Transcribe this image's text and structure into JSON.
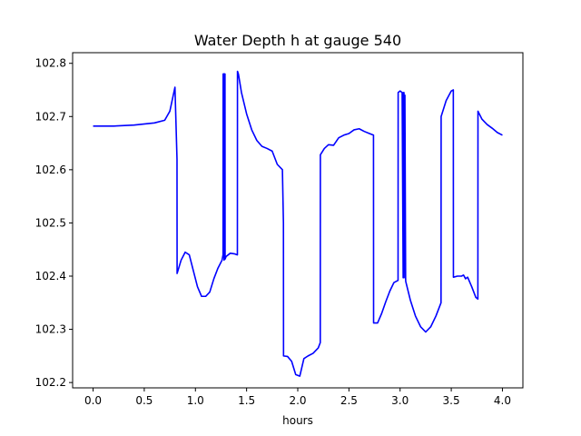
{
  "chart_data": {
    "type": "line",
    "title": "Water Depth h at gauge 540",
    "xlabel": "hours",
    "ylabel": "",
    "xlim": [
      -0.2,
      4.2
    ],
    "ylim": [
      102.19,
      102.82
    ],
    "xticks": [
      0.0,
      0.5,
      1.0,
      1.5,
      2.0,
      2.5,
      3.0,
      3.5,
      4.0
    ],
    "xtick_labels": [
      "0.0",
      "0.5",
      "1.0",
      "1.5",
      "2.0",
      "2.5",
      "3.0",
      "3.5",
      "4.0"
    ],
    "yticks": [
      102.2,
      102.3,
      102.4,
      102.5,
      102.6,
      102.7,
      102.8
    ],
    "ytick_labels": [
      "102.2",
      "102.3",
      "102.4",
      "102.5",
      "102.6",
      "102.7",
      "102.8"
    ],
    "grid": false,
    "series": [
      {
        "color": "#0000ff",
        "x": [
          0.0,
          0.2,
          0.4,
          0.6,
          0.7,
          0.75,
          0.8,
          0.82,
          0.821,
          0.86,
          0.9,
          0.94,
          0.98,
          1.02,
          1.06,
          1.1,
          1.14,
          1.18,
          1.22,
          1.26,
          1.27,
          1.271,
          1.279,
          1.28,
          1.281,
          1.289,
          1.29,
          1.3,
          1.34,
          1.38,
          1.41,
          1.411,
          1.42,
          1.45,
          1.5,
          1.55,
          1.6,
          1.65,
          1.7,
          1.75,
          1.8,
          1.85,
          1.86,
          1.861,
          1.9,
          1.94,
          1.98,
          2.02,
          2.06,
          2.1,
          2.15,
          2.2,
          2.22,
          2.221,
          2.26,
          2.3,
          2.35,
          2.4,
          2.45,
          2.5,
          2.55,
          2.6,
          2.65,
          2.7,
          2.74,
          2.741,
          2.78,
          2.82,
          2.86,
          2.9,
          2.94,
          2.98,
          2.981,
          3.0,
          3.02,
          3.03,
          3.031,
          3.038,
          3.039,
          3.046,
          3.047,
          3.054,
          3.055,
          3.1,
          3.15,
          3.2,
          3.25,
          3.3,
          3.35,
          3.4,
          3.401,
          3.45,
          3.5,
          3.52,
          3.521,
          3.56,
          3.6,
          3.62,
          3.64,
          3.66,
          3.7,
          3.74,
          3.76,
          3.761,
          3.8,
          3.85,
          3.9,
          3.95,
          4.0
        ],
        "y": [
          102.682,
          102.682,
          102.684,
          102.688,
          102.693,
          102.71,
          102.755,
          102.62,
          102.405,
          102.43,
          102.445,
          102.44,
          102.41,
          102.38,
          102.362,
          102.362,
          102.37,
          102.395,
          102.415,
          102.43,
          102.44,
          102.78,
          102.78,
          102.43,
          102.78,
          102.78,
          102.432,
          102.437,
          102.443,
          102.442,
          102.44,
          102.785,
          102.78,
          102.745,
          102.705,
          102.675,
          102.655,
          102.644,
          102.64,
          102.635,
          102.61,
          102.6,
          102.5,
          102.25,
          102.249,
          102.24,
          102.215,
          102.212,
          102.245,
          102.25,
          102.255,
          102.265,
          102.275,
          102.628,
          102.64,
          102.647,
          102.646,
          102.66,
          102.665,
          102.668,
          102.675,
          102.677,
          102.672,
          102.668,
          102.665,
          102.312,
          102.312,
          102.33,
          102.352,
          102.372,
          102.388,
          102.392,
          102.745,
          102.748,
          102.745,
          102.397,
          102.745,
          102.745,
          102.397,
          102.74,
          102.74,
          102.395,
          102.39,
          102.355,
          102.325,
          102.305,
          102.295,
          102.305,
          102.325,
          102.35,
          102.7,
          102.73,
          102.748,
          102.75,
          102.398,
          102.4,
          102.4,
          102.402,
          102.395,
          102.398,
          102.38,
          102.36,
          102.357,
          102.71,
          102.695,
          102.685,
          102.678,
          102.67,
          102.665
        ]
      }
    ]
  }
}
